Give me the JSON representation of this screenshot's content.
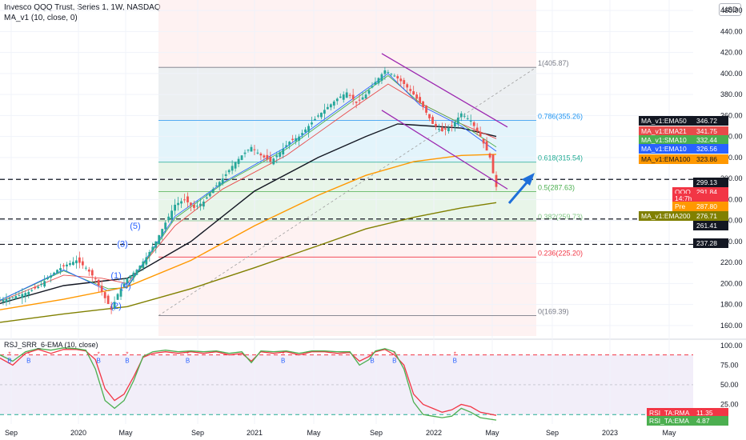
{
  "header": {
    "title": "Invesco QQQ Trust, Series 1, 1W, NASDAQ",
    "indicator": "MA_v1 (10, close, 0)",
    "currency_button": "USD"
  },
  "rsi_panel": {
    "label": "RSJ_SRR_6-EMA (10, close)"
  },
  "chart_data": [
    {
      "type": "candlestick",
      "title": "Invesco QQQ Trust, Series 1, 1W, NASDAQ",
      "x_ticks": [
        "Sep",
        "2020",
        "May",
        "Sep",
        "2021",
        "May",
        "Sep",
        "2022",
        "May",
        "Sep",
        "2023",
        "May"
      ],
      "y_ticks": [
        160,
        180,
        200,
        220,
        240,
        260,
        280,
        300,
        320,
        340,
        360,
        380,
        400,
        420,
        440,
        460
      ],
      "ylim": [
        150,
        470
      ],
      "grid": true,
      "price_series": {
        "points": [
          [
            0,
            184
          ],
          [
            3,
            186
          ],
          [
            6,
            189
          ],
          [
            9,
            192
          ],
          [
            12,
            197
          ],
          [
            15,
            205
          ],
          [
            18,
            213
          ],
          [
            21,
            218
          ],
          [
            24,
            222
          ],
          [
            27,
            215
          ],
          [
            30,
            204
          ],
          [
            33,
            186
          ],
          [
            35,
            175
          ],
          [
            37,
            190
          ],
          [
            40,
            205
          ],
          [
            43,
            213
          ],
          [
            46,
            225
          ],
          [
            49,
            240
          ],
          [
            52,
            258
          ],
          [
            55,
            275
          ],
          [
            58,
            280
          ],
          [
            61,
            272
          ],
          [
            64,
            278
          ],
          [
            67,
            290
          ],
          [
            70,
            300
          ],
          [
            73,
            312
          ],
          [
            76,
            322
          ],
          [
            79,
            330
          ],
          [
            82,
            322
          ],
          [
            85,
            316
          ],
          [
            88,
            325
          ],
          [
            91,
            335
          ],
          [
            94,
            340
          ],
          [
            97,
            350
          ],
          [
            100,
            360
          ],
          [
            103,
            368
          ],
          [
            106,
            376
          ],
          [
            109,
            382
          ],
          [
            112,
            372
          ],
          [
            115,
            380
          ],
          [
            118,
            392
          ],
          [
            121,
            403
          ],
          [
            124,
            398
          ],
          [
            127,
            390
          ],
          [
            130,
            380
          ],
          [
            133,
            368
          ],
          [
            136,
            352
          ],
          [
            139,
            345
          ],
          [
            142,
            350
          ],
          [
            145,
            362
          ],
          [
            148,
            355
          ],
          [
            151,
            340
          ],
          [
            154,
            320
          ],
          [
            155,
            305
          ],
          [
            156,
            292
          ]
        ]
      },
      "moving_averages": [
        {
          "name": "MA_v1:EMA50",
          "value": 346.72,
          "color": "#131722",
          "points": [
            [
              0,
              181
            ],
            [
              20,
              198
            ],
            [
              40,
              205
            ],
            [
              60,
              240
            ],
            [
              80,
              288
            ],
            [
              100,
              320
            ],
            [
              115,
              340
            ],
            [
              125,
              352
            ],
            [
              135,
              350
            ],
            [
              145,
              348
            ],
            [
              156,
              340
            ]
          ]
        },
        {
          "name": "MA_v1:EMA21",
          "value": 341.75,
          "color": "#e84a4a",
          "points": [
            [
              0,
              183
            ],
            [
              20,
              208
            ],
            [
              32,
              205
            ],
            [
              40,
              200
            ],
            [
              55,
              255
            ],
            [
              70,
              290
            ],
            [
              90,
              322
            ],
            [
              110,
              365
            ],
            [
              122,
              390
            ],
            [
              132,
              372
            ],
            [
              145,
              352
            ],
            [
              156,
              338
            ]
          ]
        },
        {
          "name": "MA_v1:SMA10",
          "value": 332.44,
          "color": "#4caf50",
          "points": [
            [
              0,
              184
            ],
            [
              20,
              212
            ],
            [
              34,
              195
            ],
            [
              40,
              196
            ],
            [
              55,
              262
            ],
            [
              70,
              295
            ],
            [
              90,
              328
            ],
            [
              110,
              372
            ],
            [
              122,
              398
            ],
            [
              132,
              372
            ],
            [
              145,
              352
            ],
            [
              156,
              330
            ]
          ]
        },
        {
          "name": "MA_v1:EMA10",
          "value": 326.56,
          "color": "#2962ff",
          "points": [
            [
              0,
              184
            ],
            [
              20,
              213
            ],
            [
              34,
              193
            ],
            [
              40,
              197
            ],
            [
              55,
              264
            ],
            [
              70,
              296
            ],
            [
              90,
              330
            ],
            [
              110,
              374
            ],
            [
              122,
              400
            ],
            [
              132,
              370
            ],
            [
              145,
              350
            ],
            [
              156,
              326
            ]
          ]
        },
        {
          "name": "MA_v1:EMA100",
          "value": 323.86,
          "color": "#ff9800",
          "points": [
            [
              0,
              175
            ],
            [
              20,
              185
            ],
            [
              40,
              197
            ],
            [
              60,
              222
            ],
            [
              80,
              255
            ],
            [
              100,
              284
            ],
            [
              115,
              303
            ],
            [
              130,
              316
            ],
            [
              145,
              322
            ],
            [
              156,
              323
            ]
          ]
        },
        {
          "name": "MA_v1:EMA200",
          "value": 276.71,
          "color": "#808000",
          "points": [
            [
              0,
              163
            ],
            [
              20,
              171
            ],
            [
              40,
              178
            ],
            [
              60,
              195
            ],
            [
              80,
              215
            ],
            [
              100,
              236
            ],
            [
              115,
              252
            ],
            [
              130,
              263
            ],
            [
              145,
              272
            ],
            [
              156,
              277
            ]
          ]
        }
      ],
      "fib_levels": [
        {
          "label": "1(405.87)",
          "value": 405.87
        },
        {
          "label": "0.786(355.26)",
          "value": 355.26
        },
        {
          "label": "0.618(315.54)",
          "value": 315.54
        },
        {
          "label": "0.5(287.63)",
          "value": 287.63
        },
        {
          "label": "0.382(259.73)",
          "value": 259.73
        },
        {
          "label": "0.236(225.20)",
          "value": 225.2
        },
        {
          "label": "0(169.39)",
          "value": 169.39
        }
      ],
      "support_levels": [
        {
          "label": "299.13",
          "value": 299.13
        },
        {
          "label": "261.41",
          "value": 261.41
        },
        {
          "label": "237.28",
          "value": 237.28
        }
      ],
      "price_labels": [
        {
          "label": "QQQ",
          "value": 291.84,
          "color": "#f23645"
        },
        {
          "label": "14:7h",
          "value": 284.5,
          "color": "#f23645"
        },
        {
          "label": "Pre",
          "value": 287.8,
          "color": "#ff9800"
        }
      ],
      "wave_labels": [
        {
          "label": "(1)",
          "x": 36,
          "value": 205
        },
        {
          "label": "(2)",
          "x": 36,
          "value": 176
        },
        {
          "label": "(3)",
          "x": 38,
          "value": 235
        },
        {
          "label": "(4)",
          "x": 39,
          "value": 195
        },
        {
          "label": "(5)",
          "x": 42,
          "value": 252
        }
      ],
      "channel_lines": [
        {
          "points": [
            [
              120,
              419
            ],
            [
              156,
              349
            ]
          ]
        },
        {
          "points": [
            [
              120,
              365
            ],
            [
              156,
              290
            ]
          ]
        }
      ]
    },
    {
      "type": "line",
      "title": "RSJ_SRR_6-EMA (10, close)",
      "y_ticks": [
        25,
        50,
        75,
        100
      ],
      "ylim": [
        0,
        108
      ],
      "series": [
        {
          "name": "RSI_TA:RMA",
          "value": 11.35,
          "color": "#f23645",
          "points": [
            [
              0,
              84
            ],
            [
              4,
              75
            ],
            [
              8,
              90
            ],
            [
              12,
              95
            ],
            [
              16,
              90
            ],
            [
              20,
              95
            ],
            [
              24,
              95
            ],
            [
              27,
              93
            ],
            [
              30,
              82
            ],
            [
              33,
              45
            ],
            [
              36,
              30
            ],
            [
              39,
              38
            ],
            [
              42,
              60
            ],
            [
              45,
              85
            ],
            [
              48,
              90
            ],
            [
              52,
              92
            ],
            [
              56,
              90
            ],
            [
              60,
              92
            ],
            [
              64,
              90
            ],
            [
              68,
              92
            ],
            [
              72,
              88
            ],
            [
              76,
              90
            ],
            [
              79,
              80
            ],
            [
              82,
              92
            ],
            [
              86,
              90
            ],
            [
              90,
              92
            ],
            [
              94,
              88
            ],
            [
              98,
              92
            ],
            [
              102,
              92
            ],
            [
              106,
              90
            ],
            [
              110,
              91
            ],
            [
              113,
              80
            ],
            [
              116,
              86
            ],
            [
              118,
              92
            ],
            [
              121,
              95
            ],
            [
              124,
              88
            ],
            [
              127,
              75
            ],
            [
              130,
              38
            ],
            [
              133,
              25
            ],
            [
              136,
              20
            ],
            [
              139,
              15
            ],
            [
              142,
              18
            ],
            [
              145,
              25
            ],
            [
              148,
              22
            ],
            [
              151,
              15
            ],
            [
              156,
              11
            ]
          ]
        },
        {
          "name": "RSI_TA:EMA",
          "value": 4.87,
          "color": "#4caf50",
          "points": [
            [
              0,
              88
            ],
            [
              4,
              80
            ],
            [
              8,
              92
            ],
            [
              12,
              96
            ],
            [
              16,
              94
            ],
            [
              20,
              97
            ],
            [
              24,
              96
            ],
            [
              27,
              94
            ],
            [
              30,
              70
            ],
            [
              33,
              30
            ],
            [
              36,
              20
            ],
            [
              39,
              30
            ],
            [
              42,
              55
            ],
            [
              45,
              86
            ],
            [
              48,
              92
            ],
            [
              52,
              94
            ],
            [
              56,
              92
            ],
            [
              60,
              93
            ],
            [
              64,
              92
            ],
            [
              68,
              93
            ],
            [
              72,
              90
            ],
            [
              76,
              92
            ],
            [
              79,
              78
            ],
            [
              82,
              93
            ],
            [
              86,
              92
            ],
            [
              90,
              93
            ],
            [
              94,
              90
            ],
            [
              98,
              93
            ],
            [
              102,
              93
            ],
            [
              106,
              92
            ],
            [
              110,
              92
            ],
            [
              113,
              75
            ],
            [
              116,
              82
            ],
            [
              118,
              93
            ],
            [
              121,
              96
            ],
            [
              124,
              92
            ],
            [
              127,
              70
            ],
            [
              130,
              28
            ],
            [
              133,
              12
            ],
            [
              136,
              10
            ],
            [
              139,
              8
            ],
            [
              142,
              10
            ],
            [
              145,
              20
            ],
            [
              148,
              15
            ],
            [
              151,
              8
            ],
            [
              156,
              5
            ]
          ]
        }
      ],
      "reference_lines": [
        {
          "value": 88,
          "color": "#f23645"
        },
        {
          "value": 12,
          "color": "#22ab94"
        }
      ],
      "signals": [
        {
          "label": "B",
          "x": 3,
          "value": 78
        },
        {
          "label": "B",
          "x": 9,
          "value": 78
        },
        {
          "label": "B",
          "x": 31,
          "value": 78
        },
        {
          "label": "B",
          "x": 59,
          "value": 78
        },
        {
          "label": "B",
          "x": 89,
          "value": 78
        },
        {
          "label": "B",
          "x": 117,
          "value": 78
        },
        {
          "label": "B",
          "x": 124,
          "value": 78
        },
        {
          "label": "B",
          "x": 143,
          "value": 78
        },
        {
          "label": "B",
          "x": 40,
          "value": 78
        }
      ]
    }
  ]
}
